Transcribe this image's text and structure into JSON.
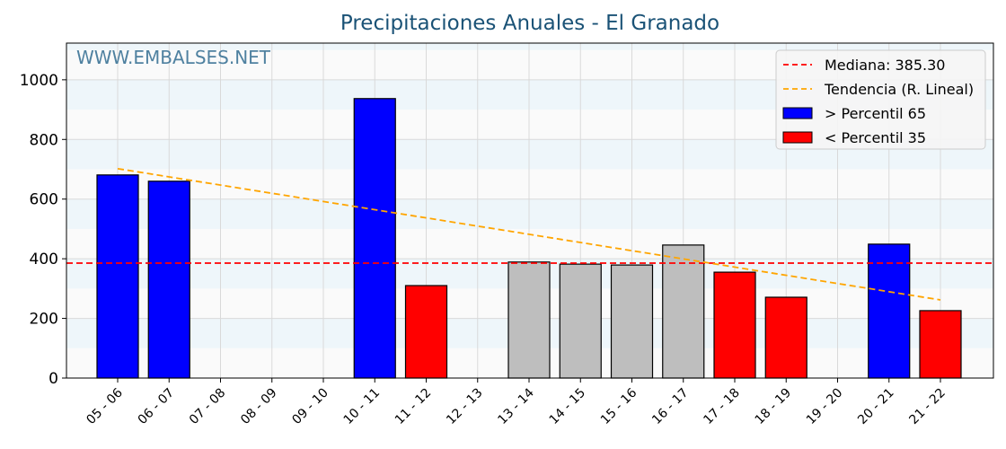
{
  "chart_data": {
    "type": "bar",
    "title": "Precipitaciones Anuales - El Granado",
    "watermark": "WWW.EMBALSES.NET",
    "xlabel": "",
    "ylabel": "",
    "ylim": [
      0,
      1123
    ],
    "yticks": [
      0,
      200,
      400,
      600,
      800,
      1000
    ],
    "grid": true,
    "legend_position": "upper right",
    "categories": [
      "05 - 06",
      "06 - 07",
      "07 - 08",
      "08 - 09",
      "09 - 10",
      "10 - 11",
      "11 - 12",
      "12 - 13",
      "13 - 14",
      "14 - 15",
      "15 - 16",
      "16 - 17",
      "17 - 18",
      "18 - 19",
      "19 - 20",
      "20 - 21",
      "21 - 22"
    ],
    "values": [
      681,
      660,
      0,
      0,
      0,
      937,
      310,
      0,
      389,
      382,
      379,
      446,
      355,
      271,
      0,
      449,
      226
    ],
    "bar_classes": [
      "high",
      "high",
      "none",
      "none",
      "none",
      "high",
      "low",
      "none",
      "mid",
      "mid",
      "mid",
      "mid",
      "low",
      "low",
      "none",
      "high",
      "low"
    ],
    "median": 385.3,
    "trend": {
      "start": 702,
      "end": 262
    },
    "legend": [
      {
        "label": "Mediana: 385.30",
        "type": "line",
        "color": "#ff0000"
      },
      {
        "label": "Tendencia (R. Lineal)",
        "type": "line",
        "color": "#ffa500"
      },
      {
        "label": " > Percentil 65",
        "type": "patch",
        "color": "#0000ff"
      },
      {
        "label": " < Percentil 35",
        "type": "patch",
        "color": "#ff0000"
      }
    ],
    "colors": {
      "high": "#0000ff",
      "low": "#ff0000",
      "mid": "#bebebe",
      "median": "#ff0000",
      "trend": "#ffa500",
      "title": "#1a5276",
      "watermark": "#4f81a0"
    }
  }
}
